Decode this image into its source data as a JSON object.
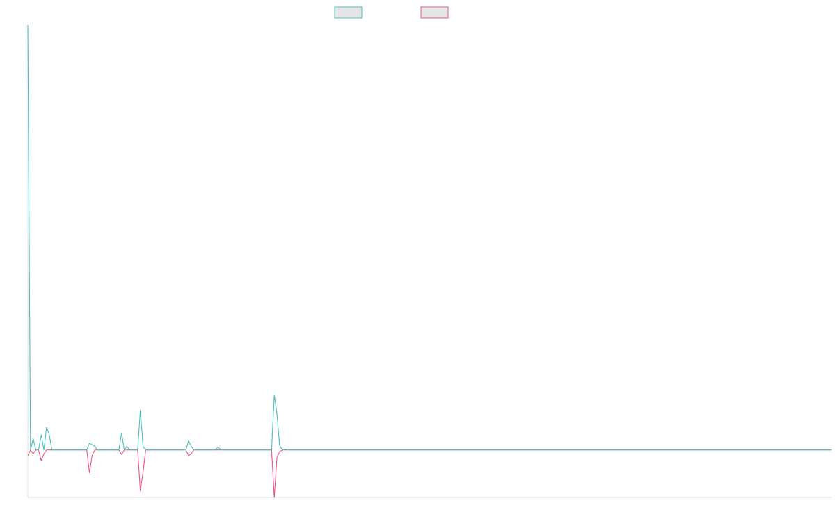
{
  "chart_data": {
    "type": "line",
    "title": "",
    "xlabel": "",
    "ylabel": "",
    "legend_position": "top-center",
    "grid": false,
    "x_range": [
      0,
      300
    ],
    "ylim": [
      -1.25,
      11.2
    ],
    "colors": {
      "series_positive": "#4bbfc0",
      "series_negative": "#f0557e",
      "legend_fill": "#e6e6e6",
      "axis": "#dddddd"
    },
    "series": [
      {
        "key": "positive",
        "name": "",
        "color": "#4bbfc0",
        "points": [
          [
            0,
            11.2
          ],
          [
            1,
            0.0
          ],
          [
            2,
            0.3
          ],
          [
            3,
            0.0
          ],
          [
            4,
            0.0
          ],
          [
            5,
            0.4
          ],
          [
            6,
            0.0
          ],
          [
            7,
            0.6
          ],
          [
            8,
            0.4
          ],
          [
            9,
            0.0
          ],
          [
            10,
            0.0
          ],
          [
            22,
            0.0
          ],
          [
            23,
            0.18
          ],
          [
            24,
            0.14
          ],
          [
            25,
            0.1
          ],
          [
            26,
            0.0
          ],
          [
            34,
            0.0
          ],
          [
            35,
            0.45
          ],
          [
            36,
            0.0
          ],
          [
            37,
            0.1
          ],
          [
            38,
            0.0
          ],
          [
            41,
            0.0
          ],
          [
            42,
            1.05
          ],
          [
            43,
            0.1
          ],
          [
            44,
            0.0
          ],
          [
            59,
            0.0
          ],
          [
            60,
            0.24
          ],
          [
            61,
            0.1
          ],
          [
            62,
            0.0
          ],
          [
            70,
            0.0
          ],
          [
            71,
            0.08
          ],
          [
            72,
            0.0
          ],
          [
            91,
            0.0
          ],
          [
            92,
            1.45
          ],
          [
            93,
            0.95
          ],
          [
            94,
            0.12
          ],
          [
            95,
            0.0
          ],
          [
            96,
            0.02
          ],
          [
            97,
            0.0
          ],
          [
            300,
            0.0
          ]
        ]
      },
      {
        "key": "negative",
        "name": "",
        "color": "#f0557e",
        "points": [
          [
            0,
            -0.15
          ],
          [
            1,
            0.0
          ],
          [
            2,
            -0.1
          ],
          [
            3,
            0.0
          ],
          [
            4,
            0.0
          ],
          [
            5,
            -0.28
          ],
          [
            6,
            -0.1
          ],
          [
            7,
            0.0
          ],
          [
            10,
            0.0
          ],
          [
            22,
            0.0
          ],
          [
            23,
            -0.6
          ],
          [
            24,
            -0.15
          ],
          [
            25,
            0.0
          ],
          [
            34,
            0.0
          ],
          [
            35,
            -0.12
          ],
          [
            36,
            0.0
          ],
          [
            41,
            0.0
          ],
          [
            42,
            -1.08
          ],
          [
            43,
            -0.6
          ],
          [
            44,
            0.0
          ],
          [
            59,
            0.0
          ],
          [
            60,
            -0.15
          ],
          [
            61,
            -0.1
          ],
          [
            62,
            0.0
          ],
          [
            91,
            0.0
          ],
          [
            92,
            -1.25
          ],
          [
            93,
            -0.2
          ],
          [
            94,
            -0.05
          ],
          [
            95,
            0.0
          ],
          [
            300,
            0.0
          ]
        ]
      }
    ]
  }
}
